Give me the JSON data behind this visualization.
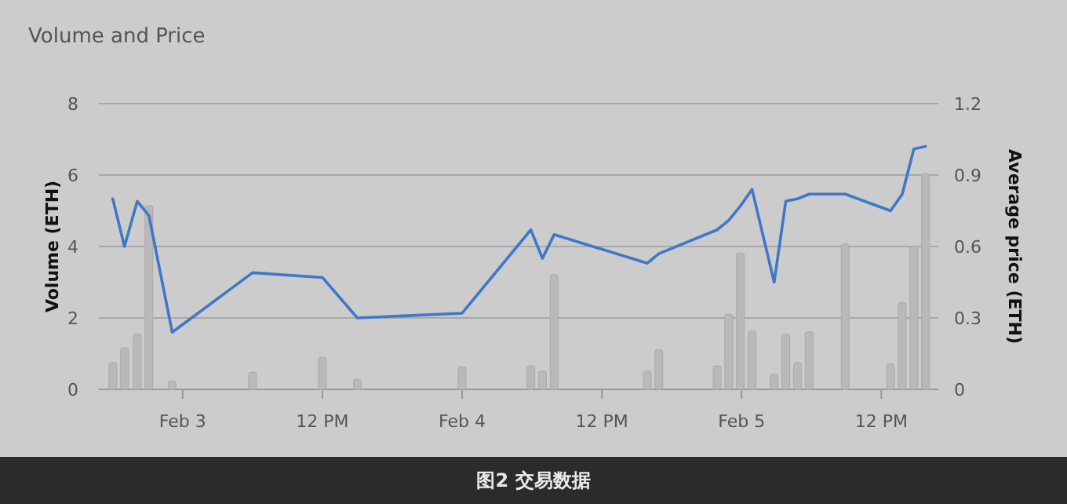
{
  "chart_data": {
    "type": "line",
    "title": "Volume and Price",
    "ylabel": "Volume (ETH)",
    "y2label": "Average price (ETH)",
    "annotations": [
      "图2 交易数据"
    ],
    "xlim": [
      "--02-02T16:48",
      "--02-05T16:54"
    ],
    "xticks": [
      {
        "value": "--02-03",
        "label": "Feb 3"
      },
      {
        "value": "--02-03T12:00",
        "label": "12 PM"
      },
      {
        "value": "--02-04",
        "label": "Feb 4"
      },
      {
        "value": "--02-04T12:00",
        "label": "12 PM"
      },
      {
        "value": "--02-05",
        "label": "Feb 5"
      },
      {
        "value": "--02-05T12:00",
        "label": "12 PM"
      }
    ],
    "ylim": [
      0,
      8
    ],
    "yticks": [
      0,
      2,
      4,
      6,
      8
    ],
    "y2lim": [
      0,
      1.2
    ],
    "y2ticks": [
      0,
      0.3,
      0.6,
      0.9,
      1.2
    ],
    "grid": "y",
    "x": [
      "--02-02T18:00",
      "--02-02T19:00",
      "--02-02T20:06",
      "--02-02T21:06",
      "--02-02T23:06",
      "--02-03T06:00",
      "--02-03T12:00",
      "--02-03T15:00",
      "--02-04T00:00",
      "--02-04T05:54",
      "--02-04T06:54",
      "--02-04T07:54",
      "--02-04T15:54",
      "--02-04T16:54",
      "--02-04T21:54",
      "--02-04T22:54",
      "--02-04T23:54",
      "--02-05T00:54",
      "--02-05T02:48",
      "--02-05T03:48",
      "--02-05T04:48",
      "--02-05T05:48",
      "--02-05T08:54",
      "--02-05T12:48",
      "--02-05T13:48",
      "--02-05T14:48",
      "--02-05T15:48"
    ],
    "series": [
      {
        "type": "bar",
        "axis": "y",
        "color": "#b9b9b9",
        "values": [
          0.75,
          1.16,
          1.55,
          5.14,
          0.23,
          0.48,
          0.9,
          0.28,
          0.63,
          0.66,
          0.51,
          3.22,
          0.51,
          1.11,
          0.66,
          2.11,
          3.82,
          1.64,
          0.43,
          1.55,
          0.75,
          1.61,
          4.07,
          0.72,
          2.43,
          4.01,
          6.04
        ]
      },
      {
        "axis": "y2",
        "color": "#3f78c8",
        "values": [
          0.8,
          0.6,
          0.79,
          0.73,
          0.24,
          0.49,
          0.47,
          0.3,
          0.32,
          0.67,
          0.55,
          0.65,
          0.53,
          0.57,
          0.67,
          0.71,
          0.77,
          0.84,
          0.45,
          0.79,
          0.8,
          0.82,
          0.82,
          0.75,
          0.82,
          1.01,
          1.02
        ]
      }
    ]
  }
}
